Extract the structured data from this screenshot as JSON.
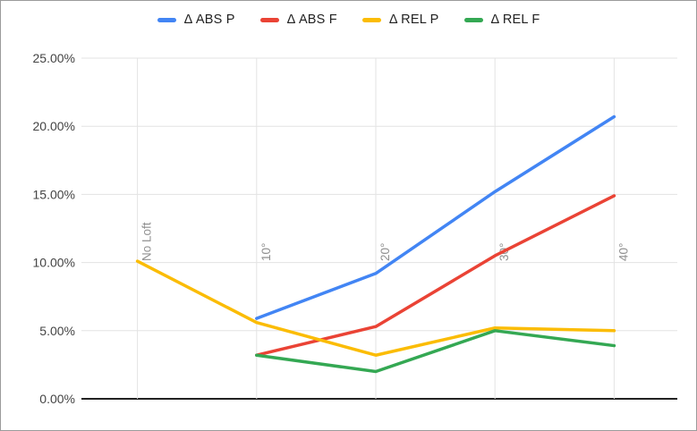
{
  "chart_data": {
    "type": "line",
    "title": "",
    "xlabel": "",
    "ylabel": "",
    "categories": [
      "No Loft",
      "10°",
      "20°",
      "30°",
      "40°"
    ],
    "series": [
      {
        "name": "Δ ABS P",
        "color": "#4285F4",
        "values": [
          null,
          5.9,
          9.2,
          15.2,
          20.7
        ]
      },
      {
        "name": "Δ ABS F",
        "color": "#EA4335",
        "values": [
          null,
          3.2,
          5.3,
          10.5,
          14.9
        ]
      },
      {
        "name": "Δ REL P",
        "color": "#FBBC04",
        "values": [
          10.1,
          5.6,
          3.2,
          5.2,
          5.0
        ]
      },
      {
        "name": "Δ REL F",
        "color": "#34A853",
        "values": [
          null,
          3.2,
          2.0,
          5.0,
          3.9
        ]
      }
    ],
    "ylim": [
      0,
      25
    ],
    "y_ticks": [
      "0.00%",
      "5.00%",
      "10.00%",
      "15.00%",
      "20.00%",
      "25.00%"
    ],
    "y_tick_step": 5,
    "legend_position": "top",
    "grid": true,
    "styles": {
      "grid_color": "#e3e3e3",
      "axis_color": "#222222",
      "y_label_color": "#444444",
      "x_label_color": "#909090"
    }
  }
}
